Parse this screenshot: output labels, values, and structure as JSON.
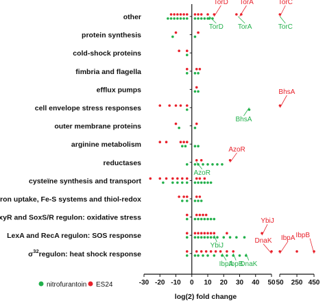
{
  "chart_data": {
    "type": "scatter",
    "xlabel": "log(2) fold change",
    "x_ticks": [
      "-30",
      "-20",
      "-10",
      "0",
      "10",
      "20",
      "30",
      "40",
      "50",
      "50",
      "250",
      "450"
    ],
    "categories": [
      "other",
      "protein synthesis",
      "cold-shock proteins",
      "fimbria and flagella",
      "efflux pumps",
      "cell envelope stress responses",
      "outer membrane proteins",
      "arginine metabolism",
      "reductases",
      "cysteïne synthesis and transport",
      "iron uptake, Fe-S systems and thiol-redox",
      "OxyR and SoxS/R regulon: oxidative stress",
      "LexA and RecA regulon: SOS response",
      "regulon: heat shock response"
    ],
    "heat_shock_prefix": "σ",
    "heat_shock_superscript": "32",
    "series": [
      {
        "name": "nitrofurantoin",
        "color": "#22b04b",
        "points": [
          {
            "cat": 0,
            "x": [
              -15,
              -13,
              -11,
              -9,
              -7,
              -5,
              -3,
              2,
              4,
              6,
              8,
              10,
              11,
              13
            ]
          },
          {
            "cat": 1,
            "x": [
              -12,
              2
            ]
          },
          {
            "cat": 2,
            "x": [
              -3
            ]
          },
          {
            "cat": 3,
            "x": [
              -3,
              2,
              4
            ]
          },
          {
            "cat": 4,
            "x": [
              2,
              4
            ]
          },
          {
            "cat": 5,
            "x": [
              -3,
              36
            ]
          },
          {
            "cat": 6,
            "x": [
              -8,
              2
            ]
          },
          {
            "cat": 7,
            "x": [
              -6,
              -4,
              2,
              4
            ]
          },
          {
            "cat": 8,
            "x": [
              -3,
              2,
              4,
              7,
              10,
              13,
              16,
              19
            ]
          },
          {
            "cat": 9,
            "x": [
              -18,
              -12,
              -9,
              -6,
              -3,
              2,
              4,
              6,
              8,
              10,
              12
            ]
          },
          {
            "cat": 10,
            "x": [
              -6,
              -3,
              2,
              4,
              6
            ]
          },
          {
            "cat": 11,
            "x": [
              -3,
              2,
              4,
              6,
              8,
              10,
              12,
              14
            ]
          },
          {
            "cat": 12,
            "x": [
              -3,
              2,
              4,
              6,
              8,
              10,
              12,
              14,
              16,
              20,
              24,
              28,
              33
            ]
          },
          {
            "cat": 13,
            "x": [
              -3,
              2,
              4,
              7,
              10,
              14,
              19,
              22,
              26,
              30,
              34
            ]
          }
        ]
      },
      {
        "name": "ES24",
        "color": "#e8202a",
        "points": [
          {
            "cat": 0,
            "x": [
              -13,
              -11,
              -9,
              -7,
              -5,
              -3,
              2,
              4,
              6,
              10,
              14,
              28,
              31,
              52
            ]
          },
          {
            "cat": 1,
            "x": [
              -10,
              4
            ]
          },
          {
            "cat": 2,
            "x": [
              -8,
              -3
            ]
          },
          {
            "cat": 3,
            "x": [
              -3,
              3,
              5
            ]
          },
          {
            "cat": 4,
            "x": [
              3
            ]
          },
          {
            "cat": 5,
            "x": [
              -20,
              -14,
              -10,
              -7,
              -3,
              53
            ]
          },
          {
            "cat": 6,
            "x": [
              -10,
              3
            ]
          },
          {
            "cat": 7,
            "x": [
              -20,
              -16,
              -7,
              -5,
              -3
            ]
          },
          {
            "cat": 8,
            "x": [
              3,
              6,
              24
            ]
          },
          {
            "cat": 9,
            "x": [
              -26,
              -20,
              -16,
              -12,
              -9,
              -6,
              -3,
              3,
              5,
              8
            ]
          },
          {
            "cat": 10,
            "x": [
              -8,
              -5,
              -3,
              3,
              5
            ]
          },
          {
            "cat": 11,
            "x": [
              -3,
              3,
              5,
              7,
              9
            ]
          },
          {
            "cat": 12,
            "x": [
              -3,
              2,
              4,
              6,
              8,
              10,
              12,
              14,
              22,
              44
            ]
          },
          {
            "cat": 13,
            "x": [
              -3,
              3,
              6,
              9,
              12,
              15,
              18,
              22,
              26,
              50,
              51,
              250,
              450
            ]
          }
        ]
      }
    ],
    "annotations": [
      {
        "text": "TorD",
        "color": "#e8202a",
        "cat": 0,
        "x": 14
      },
      {
        "text": "TorA",
        "color": "#e8202a",
        "cat": 0,
        "x": 30
      },
      {
        "text": "TorC",
        "color": "#e8202a",
        "cat": 0,
        "x": 52
      },
      {
        "text": "TorD",
        "color": "#22b04b",
        "cat": 0,
        "x": 11
      },
      {
        "text": "TorA",
        "color": "#22b04b",
        "cat": 0,
        "x": 29
      },
      {
        "text": "TorC",
        "color": "#22b04b",
        "cat": 0,
        "x": 52
      },
      {
        "text": "BhsA",
        "color": "#e8202a",
        "cat": 5,
        "x": 53
      },
      {
        "text": "BhsA",
        "color": "#22b04b",
        "cat": 5,
        "x": 36
      },
      {
        "text": "AzoR",
        "color": "#e8202a",
        "cat": 8,
        "x": 24
      },
      {
        "text": "AzoR",
        "color": "#22b04b",
        "cat": 8,
        "x": 3
      },
      {
        "text": "YbiJ",
        "color": "#e8202a",
        "cat": 12,
        "x": 44
      },
      {
        "text": "YbiJ",
        "color": "#22b04b",
        "cat": 12,
        "x": 14
      },
      {
        "text": "DnaK",
        "color": "#e8202a",
        "cat": 13,
        "x": 50
      },
      {
        "text": "IbpA",
        "color": "#e8202a",
        "cat": 13,
        "x": 51
      },
      {
        "text": "IbpB",
        "color": "#e8202a",
        "cat": 13,
        "x": 450
      },
      {
        "text": "IbpA",
        "color": "#22b04b",
        "cat": 13,
        "x": 19
      },
      {
        "text": "IbpB",
        "color": "#22b04b",
        "cat": 13,
        "x": 26
      },
      {
        "text": "DnaK",
        "color": "#22b04b",
        "cat": 13,
        "x": 34
      }
    ],
    "legend": [
      {
        "label": "nitrofurantoin",
        "color": "#22b04b"
      },
      {
        "label": "ES24",
        "color": "#e8202a"
      }
    ]
  }
}
